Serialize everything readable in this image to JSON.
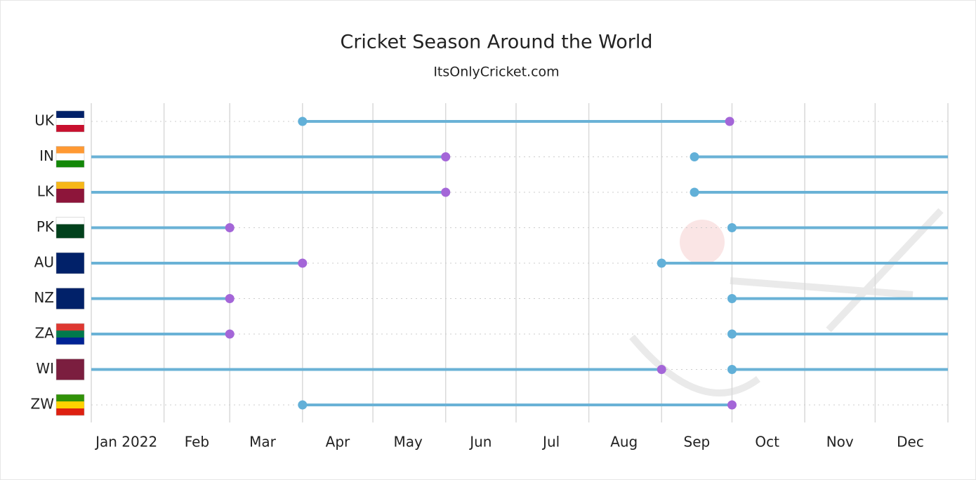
{
  "chart_data": {
    "type": "range",
    "title": "Cricket Season Around the World",
    "subtitle": "ItsOnlyCricket.com",
    "xlim": [
      0,
      365
    ],
    "xticks": [
      {
        "value": 15,
        "label": "Jan 2022"
      },
      {
        "value": 45,
        "label": "Feb"
      },
      {
        "value": 73,
        "label": "Mar"
      },
      {
        "value": 105,
        "label": "Apr"
      },
      {
        "value": 135,
        "label": "May"
      },
      {
        "value": 166,
        "label": "Jun"
      },
      {
        "value": 196,
        "label": "Jul"
      },
      {
        "value": 227,
        "label": "Aug"
      },
      {
        "value": 258,
        "label": "Sep"
      },
      {
        "value": 288,
        "label": "Oct"
      },
      {
        "value": 319,
        "label": "Nov"
      },
      {
        "value": 349,
        "label": "Dec"
      }
    ],
    "xgrid": [
      0,
      31,
      59,
      90,
      120,
      151,
      181,
      212,
      243,
      273,
      304,
      334,
      365
    ],
    "line_color": "#6ab2d6",
    "start_color": "#62b0d8",
    "end_color": "#a466d8",
    "series": [
      {
        "name": "UK",
        "segments": [
          [
            90,
            272
          ]
        ]
      },
      {
        "name": "IN",
        "segments": [
          [
            0,
            151
          ],
          [
            257,
            365
          ]
        ]
      },
      {
        "name": "LK",
        "segments": [
          [
            0,
            151
          ],
          [
            257,
            365
          ]
        ]
      },
      {
        "name": "PK",
        "segments": [
          [
            0,
            59
          ],
          [
            273,
            365
          ]
        ]
      },
      {
        "name": "AU",
        "segments": [
          [
            0,
            90
          ],
          [
            243,
            365
          ]
        ]
      },
      {
        "name": "NZ",
        "segments": [
          [
            0,
            59
          ],
          [
            273,
            365
          ]
        ]
      },
      {
        "name": "ZA",
        "segments": [
          [
            0,
            59
          ],
          [
            273,
            365
          ]
        ]
      },
      {
        "name": "WI",
        "segments": [
          [
            0,
            243
          ],
          [
            273,
            365
          ]
        ]
      },
      {
        "name": "ZW",
        "segments": [
          [
            90,
            273
          ]
        ]
      }
    ]
  }
}
